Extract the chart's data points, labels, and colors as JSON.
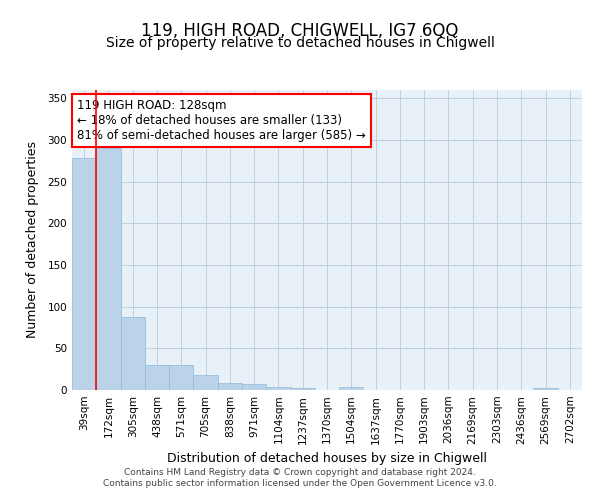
{
  "title1": "119, HIGH ROAD, CHIGWELL, IG7 6QQ",
  "title2": "Size of property relative to detached houses in Chigwell",
  "xlabel": "Distribution of detached houses by size in Chigwell",
  "ylabel": "Number of detached properties",
  "categories": [
    "39sqm",
    "172sqm",
    "305sqm",
    "438sqm",
    "571sqm",
    "705sqm",
    "838sqm",
    "971sqm",
    "1104sqm",
    "1237sqm",
    "1370sqm",
    "1504sqm",
    "1637sqm",
    "1770sqm",
    "1903sqm",
    "2036sqm",
    "2169sqm",
    "2303sqm",
    "2436sqm",
    "2569sqm",
    "2702sqm"
  ],
  "values": [
    278,
    290,
    88,
    30,
    30,
    18,
    9,
    7,
    4,
    2,
    0,
    4,
    0,
    0,
    0,
    0,
    0,
    0,
    0,
    3,
    0
  ],
  "bar_color": "#bad3e8",
  "bar_edge_color": "#8fb8d8",
  "ylim": [
    0,
    360
  ],
  "yticks": [
    0,
    50,
    100,
    150,
    200,
    250,
    300,
    350
  ],
  "red_line_x": 0.5,
  "property_label": "119 HIGH ROAD: 128sqm",
  "annotation_line1": "← 18% of detached houses are smaller (133)",
  "annotation_line2": "81% of semi-detached houses are larger (585) →",
  "footnote1": "Contains HM Land Registry data © Crown copyright and database right 2024.",
  "footnote2": "Contains public sector information licensed under the Open Government Licence v3.0.",
  "background_color": "#ffffff",
  "axes_bg_color": "#e8f0f8",
  "grid_color": "#c0d0e0",
  "title1_fontsize": 12,
  "title2_fontsize": 10,
  "tick_fontsize": 7.5,
  "label_fontsize": 9,
  "footnote_fontsize": 6.5
}
